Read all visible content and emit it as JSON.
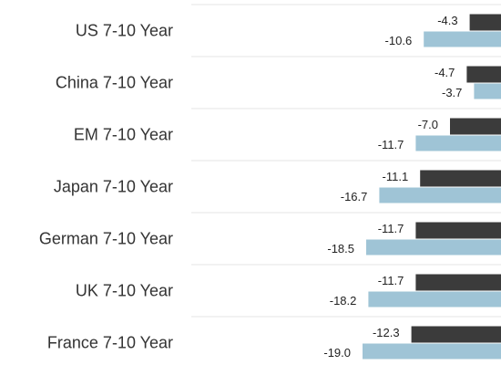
{
  "chart_data": {
    "type": "bar",
    "orientation": "horizontal",
    "categories": [
      "US 7-10 Year",
      "China 7-10 Year",
      "EM 7-10 Year",
      "Japan 7-10 Year",
      "German 7-10 Year",
      "UK 7-10 Year",
      "France 7-10 Year"
    ],
    "series": [
      {
        "color": "#3b3b3b",
        "values": [
          -4.3,
          -4.7,
          -7.0,
          -11.1,
          -11.7,
          -11.7,
          -12.3
        ],
        "value_labels": [
          "-4.3",
          "-4.7",
          "-7.0",
          "-11.1",
          "-11.7",
          "-11.7",
          "-12.3"
        ]
      },
      {
        "color": "#9fc4d6",
        "values": [
          -10.6,
          -3.7,
          -11.7,
          -16.7,
          -18.5,
          -18.2,
          -19.0
        ],
        "value_labels": [
          "-10.6",
          "-3.7",
          "-11.7",
          "-16.7",
          "-18.5",
          "-18.2",
          "-19.0"
        ]
      }
    ],
    "xlim": [
      -42.5,
      0
    ]
  }
}
